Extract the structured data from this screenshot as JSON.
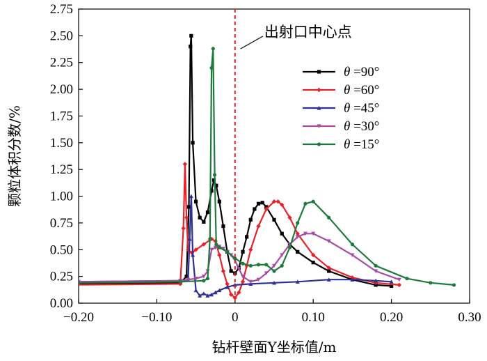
{
  "chart_data": {
    "type": "line",
    "title": "",
    "xlabel": "钻杆壁面Y坐标值/m",
    "ylabel": "颗粒体积分数/%",
    "xlim": [
      -0.2,
      0.3
    ],
    "ylim": [
      0,
      2.75
    ],
    "x_ticks": [
      "−0.20",
      "−0.10",
      "0",
      "0.10",
      "0.20",
      "0.30"
    ],
    "x_tick_values": [
      -0.2,
      -0.1,
      0,
      0.1,
      0.2,
      0.3
    ],
    "y_ticks": [
      "0.00",
      "0.25",
      "0.50",
      "0.75",
      "1.00",
      "1.25",
      "1.50",
      "1.75",
      "2.00",
      "2.25",
      "2.50",
      "2.75"
    ],
    "y_tick_values": [
      0,
      0.25,
      0.5,
      0.75,
      1.0,
      1.25,
      1.5,
      1.75,
      2.0,
      2.25,
      2.5,
      2.75
    ],
    "grid": false,
    "legend_position": "right",
    "annotation": {
      "text": "出射口中心点",
      "x": 0
    },
    "series": [
      {
        "name": "θ =90°",
        "label_theta": "θ",
        "label_rest": " =90°",
        "color": "#000000",
        "marker": "square",
        "x": [
          -0.22,
          -0.07,
          -0.062,
          -0.059,
          -0.057,
          -0.056,
          -0.054,
          -0.05,
          -0.045,
          -0.04,
          -0.035,
          -0.03,
          -0.027,
          -0.024,
          -0.02,
          -0.015,
          -0.01,
          -0.005,
          0.0,
          0.005,
          0.01,
          0.015,
          0.02,
          0.025,
          0.03,
          0.035,
          0.04,
          0.05,
          0.06,
          0.07,
          0.08,
          0.1,
          0.12,
          0.15,
          0.18,
          0.2
        ],
        "y": [
          0.18,
          0.19,
          0.25,
          0.9,
          2.4,
          2.5,
          1.5,
          0.95,
          0.8,
          0.76,
          0.85,
          1.05,
          1.15,
          1.1,
          0.95,
          0.72,
          0.48,
          0.3,
          0.28,
          0.33,
          0.48,
          0.62,
          0.78,
          0.88,
          0.93,
          0.94,
          0.9,
          0.78,
          0.65,
          0.55,
          0.48,
          0.38,
          0.3,
          0.22,
          0.17,
          0.16
        ]
      },
      {
        "name": "θ =60°",
        "label_theta": "θ",
        "label_rest": " =60°",
        "color": "#e8202a",
        "marker": "diamond",
        "x": [
          -0.22,
          -0.07,
          -0.066,
          -0.064,
          -0.062,
          -0.06,
          -0.055,
          -0.05,
          -0.04,
          -0.03,
          -0.025,
          -0.02,
          -0.015,
          -0.01,
          -0.005,
          0.0,
          0.005,
          0.01,
          0.015,
          0.02,
          0.03,
          0.04,
          0.05,
          0.055,
          0.06,
          0.07,
          0.08,
          0.1,
          0.12,
          0.15,
          0.18,
          0.21
        ],
        "y": [
          0.17,
          0.18,
          0.7,
          1.3,
          0.8,
          0.5,
          0.47,
          0.5,
          0.55,
          0.6,
          0.58,
          0.45,
          0.3,
          0.18,
          0.08,
          0.05,
          0.1,
          0.2,
          0.35,
          0.5,
          0.72,
          0.88,
          0.95,
          0.95,
          0.92,
          0.8,
          0.65,
          0.45,
          0.33,
          0.24,
          0.19,
          0.17
        ]
      },
      {
        "name": "θ =45°",
        "label_theta": "θ",
        "label_rest": " =45°",
        "color": "#2e3192",
        "marker": "triangle",
        "x": [
          -0.2,
          -0.07,
          -0.06,
          -0.058,
          -0.056,
          -0.054,
          -0.05,
          -0.045,
          -0.04,
          -0.035,
          -0.03,
          -0.025,
          -0.02,
          -0.01,
          0.0,
          0.02,
          0.05,
          0.08,
          0.12,
          0.15,
          0.18,
          0.2
        ],
        "y": [
          0.2,
          0.21,
          0.22,
          0.6,
          1.0,
          0.45,
          0.12,
          0.07,
          0.09,
          0.07,
          0.08,
          0.1,
          0.12,
          0.15,
          0.17,
          0.18,
          0.19,
          0.2,
          0.22,
          0.22,
          0.21,
          0.2
        ]
      },
      {
        "name": "θ =30°",
        "label_theta": "θ",
        "label_rest": " =30°",
        "color": "#a64ca6",
        "marker": "triangle-down",
        "x": [
          -0.2,
          -0.07,
          -0.06,
          -0.05,
          -0.04,
          -0.035,
          -0.03,
          -0.025,
          -0.02,
          -0.015,
          -0.01,
          -0.005,
          0.0,
          0.005,
          0.01,
          0.02,
          0.03,
          0.04,
          0.05,
          0.06,
          0.07,
          0.08,
          0.09,
          0.1,
          0.12,
          0.15,
          0.18,
          0.21
        ],
        "y": [
          0.2,
          0.21,
          0.22,
          0.23,
          0.25,
          0.3,
          0.5,
          0.52,
          0.53,
          0.51,
          0.48,
          0.45,
          0.4,
          0.32,
          0.25,
          0.2,
          0.22,
          0.28,
          0.35,
          0.45,
          0.55,
          0.62,
          0.65,
          0.65,
          0.58,
          0.45,
          0.3,
          0.22
        ]
      },
      {
        "name": "θ =15°",
        "label_theta": "θ",
        "label_rest": " =15°",
        "color": "#1e7a3c",
        "marker": "circle",
        "x": [
          -0.2,
          -0.07,
          -0.04,
          -0.035,
          -0.032,
          -0.03,
          -0.028,
          -0.026,
          -0.024,
          -0.02,
          -0.01,
          0.0,
          0.01,
          0.02,
          0.03,
          0.04,
          0.05,
          0.06,
          0.07,
          0.08,
          0.09,
          0.1,
          0.12,
          0.15,
          0.18,
          0.22,
          0.25,
          0.28
        ],
        "y": [
          0.19,
          0.2,
          0.21,
          0.23,
          0.6,
          2.2,
          2.38,
          1.2,
          0.55,
          0.52,
          0.48,
          0.42,
          0.37,
          0.35,
          0.36,
          0.36,
          0.3,
          0.35,
          0.52,
          0.75,
          0.93,
          0.95,
          0.8,
          0.55,
          0.35,
          0.23,
          0.19,
          0.17
        ]
      }
    ]
  }
}
